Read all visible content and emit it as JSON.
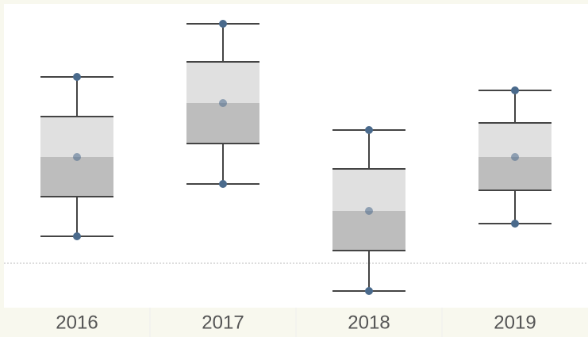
{
  "chart_data": {
    "type": "box",
    "categories": [
      "2016",
      "2017",
      "2018",
      "2019"
    ],
    "max": [
      23.5,
      30.2,
      16.8,
      21.8
    ],
    "q3": [
      18.5,
      25.4,
      11.9,
      17.7
    ],
    "median": [
      13.4,
      20.2,
      6.6,
      13.4
    ],
    "q1": [
      8.4,
      15.1,
      1.6,
      9.2
    ],
    "min": [
      3.4,
      10.0,
      -3.5,
      5.0
    ],
    "ylim": [
      -5.6,
      32.7
    ],
    "reference_line": 0,
    "colors": {
      "upper_box": "#e0e0e0",
      "lower_box": "#bdbdbd",
      "line": "#444444",
      "marker": "#4a6a8c"
    }
  }
}
